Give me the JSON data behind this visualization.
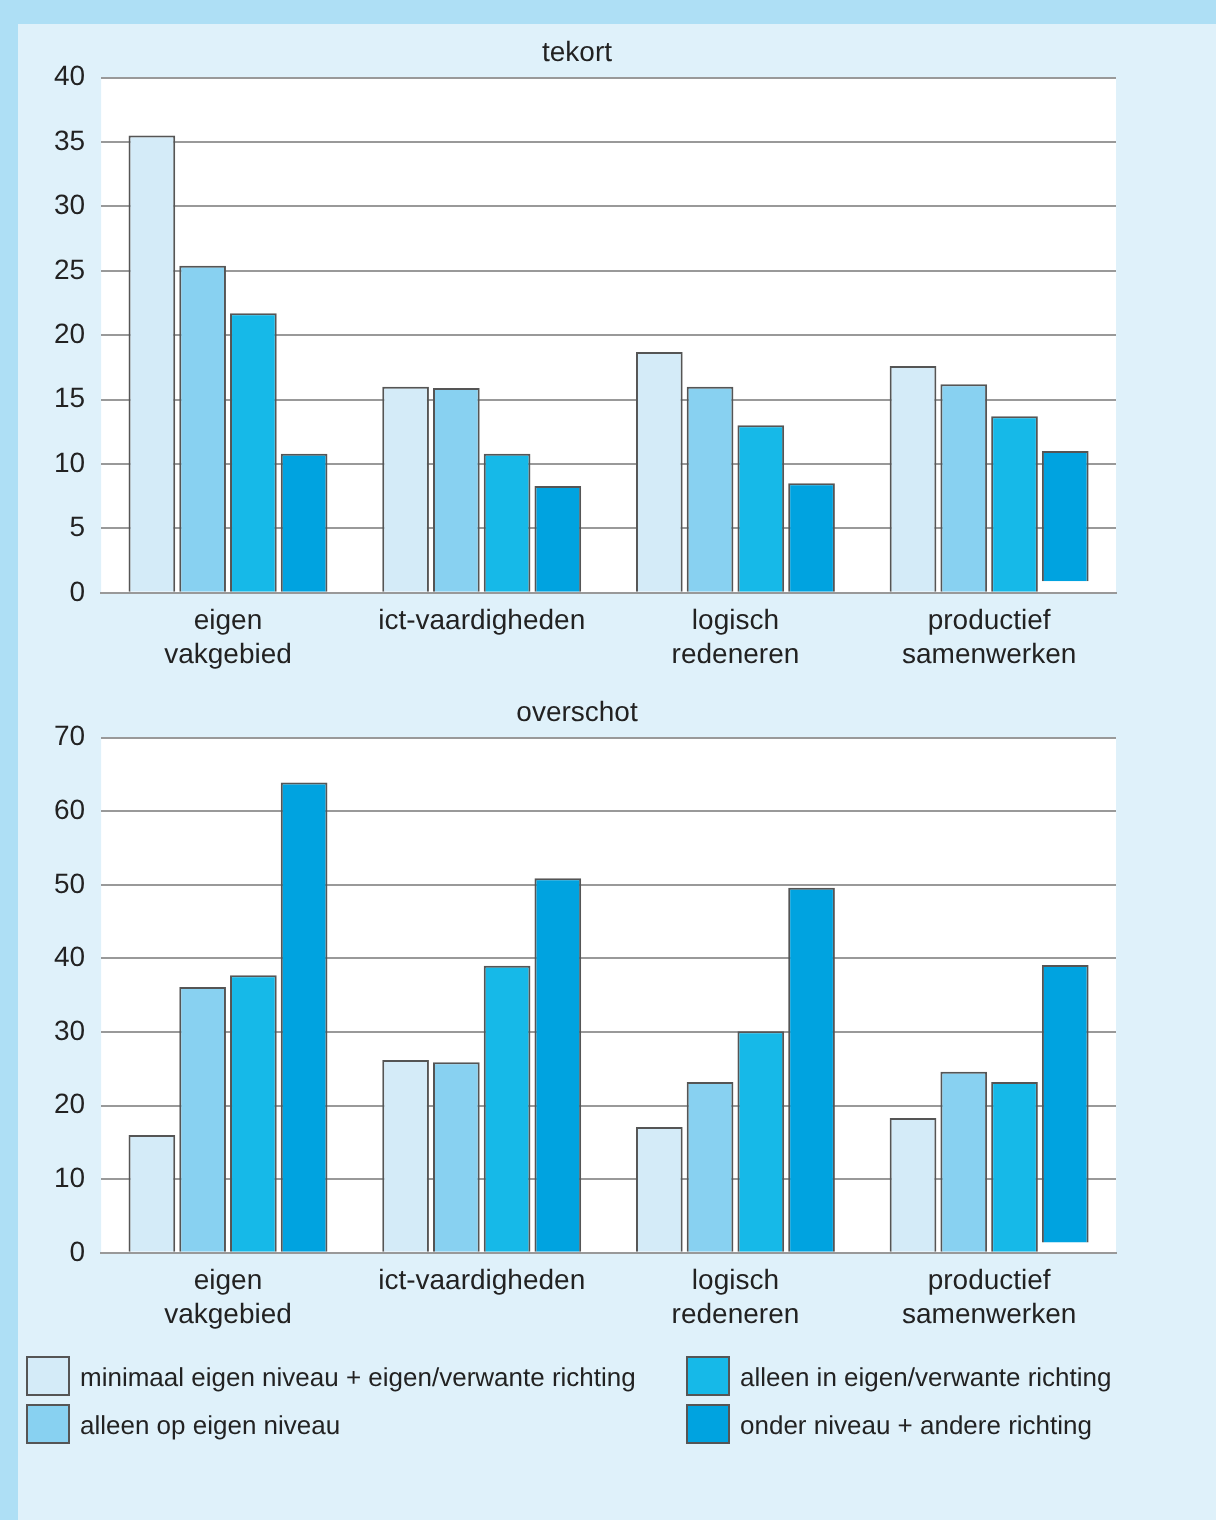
{
  "chart_data": [
    {
      "type": "bar",
      "title": "tekort",
      "categories": [
        "eigen vakgebied",
        "ict-vaardigheden",
        "logisch redeneren",
        "productief samenwerken"
      ],
      "series": [
        {
          "color": "#d4ebf8",
          "values": [
            35.5,
            16.0,
            18.7,
            17.6
          ]
        },
        {
          "color": "#88d1f1",
          "values": [
            25.4,
            15.9,
            16.0,
            16.2
          ]
        },
        {
          "color": "#16b9e8",
          "values": [
            21.7,
            10.8,
            13.0,
            13.7
          ]
        },
        {
          "color": "#00a3e0",
          "values": [
            10.8,
            8.3,
            8.5,
            10.1
          ],
          "base": [
            0,
            0,
            0,
            0.9
          ]
        }
      ],
      "ylim": [
        0,
        40
      ],
      "yticks": [
        0,
        5,
        10,
        15,
        20,
        25,
        30,
        35,
        40
      ],
      "grid": "y",
      "legend": false
    },
    {
      "type": "bar",
      "title": "overschot",
      "categories": [
        "eigen vakgebied",
        "ict-vaardigheden",
        "logisch redeneren",
        "productief samenwerken"
      ],
      "series": [
        {
          "name": "minimaal eigen niveau + eigen/verwante richting",
          "color": "#d4ebf8",
          "values": [
            16.0,
            26.2,
            17.1,
            18.3
          ]
        },
        {
          "name": "alleen op eigen niveau",
          "color": "#88d1f1",
          "values": [
            36.1,
            25.9,
            23.2,
            24.6
          ]
        },
        {
          "name": "alleen in eigen/verwante richting",
          "color": "#16b9e8",
          "values": [
            37.7,
            39.0,
            30.1,
            23.2
          ]
        },
        {
          "name": "onder niveau + andere richting",
          "color": "#00a3e0",
          "values": [
            63.9,
            50.9,
            49.6,
            37.7
          ],
          "base": [
            0,
            0,
            0,
            1.4
          ]
        }
      ],
      "ylim": [
        0,
        70
      ],
      "yticks": [
        0,
        10,
        20,
        30,
        40,
        50,
        60,
        70
      ],
      "grid": "y",
      "legend": "bottom"
    }
  ]
}
